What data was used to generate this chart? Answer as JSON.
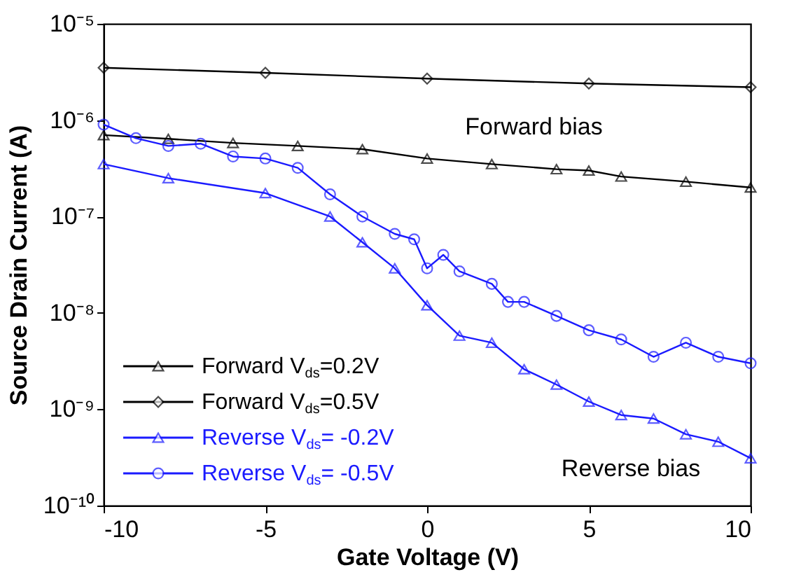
{
  "chart_data": {
    "type": "line",
    "xlabel": "Gate Voltage (V)",
    "ylabel": "Source Drain Current (A)",
    "log": "y",
    "xlim": [
      -10,
      10
    ],
    "ylim": [
      1e-10,
      1e-05
    ],
    "xticks": [
      -10,
      -5,
      0,
      5,
      10
    ],
    "yticks": [
      {
        "value": 1e-10,
        "label": "10⁻¹⁰"
      },
      {
        "value": 1e-09,
        "label": "10⁻⁹"
      },
      {
        "value": 1e-08,
        "label": "10⁻⁸"
      },
      {
        "value": 1e-07,
        "label": "10⁻⁷"
      },
      {
        "value": 1e-06,
        "label": "10⁻⁶"
      },
      {
        "value": 1e-05,
        "label": "10⁻⁵"
      }
    ],
    "grid": false,
    "legend": "bottom left",
    "line_style": "solid",
    "series": [
      {
        "name": "Forward V$_{ds}$=0.2V",
        "color": "#000000",
        "marker": "triangle",
        "x": [
          -10,
          -8,
          -6,
          -4,
          -2,
          0,
          2,
          4,
          5,
          6,
          8,
          10
        ],
        "values": [
          7e-07,
          6.4e-07,
          5.8e-07,
          5.4e-07,
          5e-07,
          4e-07,
          3.5e-07,
          3.1e-07,
          3e-07,
          2.6e-07,
          2.3e-07,
          2e-07
        ]
      },
      {
        "name": "Forward V$_{ds}$=0.5V",
        "color": "#000000",
        "marker": "diamond",
        "x": [
          -10,
          -5,
          0,
          5,
          10
        ],
        "values": [
          3.5e-06,
          3.1e-06,
          2.7e-06,
          2.4e-06,
          2.2e-06
        ]
      },
      {
        "name": "Reverse V$_{ds}$= -0.2V",
        "color": "#1a1aff",
        "marker": "triangle",
        "x": [
          -10,
          -8,
          -5,
          -3,
          -2,
          -1,
          0,
          1,
          2,
          3,
          4,
          5,
          6,
          7,
          8,
          9,
          10
        ],
        "values": [
          3.5e-07,
          2.5e-07,
          1.75e-07,
          1e-07,
          5.4e-08,
          2.9e-08,
          1.2e-08,
          5.8e-09,
          4.9e-09,
          2.6e-09,
          1.8e-09,
          1.2e-09,
          8.7e-10,
          8e-10,
          5.5e-10,
          4.6e-10,
          3.1e-10
        ]
      },
      {
        "name": "Reverse V$_{ds}$= -0.5V",
        "color": "#1a1aff",
        "marker": "circle",
        "x": [
          -10,
          -9,
          -8,
          -7,
          -6,
          -5,
          -4,
          -3,
          -2,
          -1,
          -0.4,
          0,
          0.5,
          1,
          2,
          2.5,
          3,
          4,
          5,
          6,
          7,
          8,
          9,
          10
        ],
        "values": [
          9e-07,
          6.5e-07,
          5.4e-07,
          5.7e-07,
          4.2e-07,
          4e-07,
          3.2e-07,
          1.7e-07,
          1e-07,
          6.6e-08,
          5.8e-08,
          2.9e-08,
          4e-08,
          2.7e-08,
          2e-08,
          1.3e-08,
          1.3e-08,
          9.3e-09,
          6.6e-09,
          5.3e-09,
          3.5e-09,
          4.9e-09,
          3.5e-09,
          3e-09
        ]
      }
    ],
    "annotations": [
      "Forward bias",
      "Reverse bias"
    ]
  }
}
